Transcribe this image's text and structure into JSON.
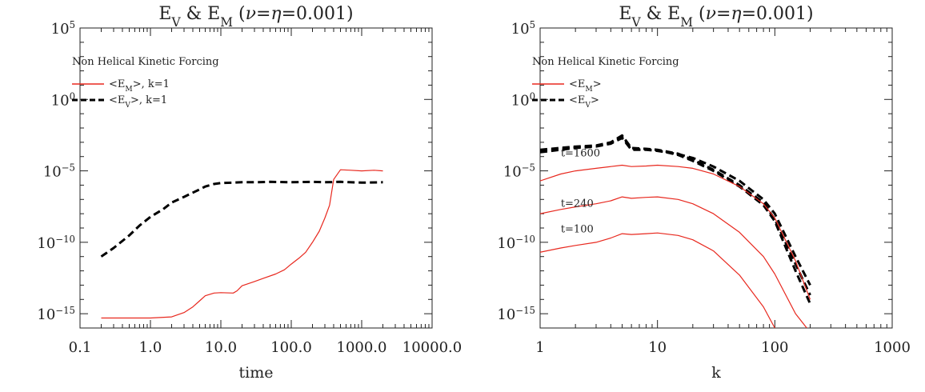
{
  "chart_data": [
    {
      "type": "line",
      "title": "E_V & E_M (ν=η=0.001)",
      "xlabel": "time",
      "ylabel": "",
      "xscale": "log",
      "yscale": "log",
      "xlim": [
        0.1,
        10000
      ],
      "ylim": [
        1e-16,
        100000.0
      ],
      "xticks": [
        0.1,
        1,
        10,
        100,
        1000,
        10000
      ],
      "xtick_labels": [
        "0.1",
        "1.0",
        "10.0",
        "100.0",
        "1000.0",
        "10000.0"
      ],
      "yticks": [
        1e-15,
        1e-10,
        1e-05,
        1,
        100000.0
      ],
      "ytick_labels": [
        {
          "base": "10",
          "exp": "−15"
        },
        {
          "base": "10",
          "exp": "−10"
        },
        {
          "base": "10",
          "exp": "−5"
        },
        {
          "base": "10",
          "exp": "0"
        },
        {
          "base": "10",
          "exp": "5"
        }
      ],
      "annotation": "Non Helical Kinetic Forcing",
      "legend_position": "top-left",
      "series": [
        {
          "name": "<E_M>, k=1",
          "legend_main": "<E",
          "legend_sub": "M",
          "legend_tail": ">, k=1",
          "color": "#e8281e",
          "style": "solid",
          "x": [
            0.2,
            0.5,
            1.0,
            2.0,
            3.0,
            4.0,
            5.0,
            6.0,
            8.0,
            10.0,
            15.0,
            17.0,
            20.0,
            30.0,
            40.0,
            60.0,
            80.0,
            100.0,
            130.0,
            160.0,
            200.0,
            250.0,
            300.0,
            350.0,
            400.0,
            500.0,
            700.0,
            1000.0,
            1500.0,
            2000.0
          ],
          "y": [
            5e-16,
            5e-16,
            5e-16,
            6e-16,
            1.2e-15,
            3e-15,
            8e-15,
            1.8e-14,
            2.8e-14,
            3e-14,
            2.8e-14,
            4e-14,
            9e-14,
            1.8e-13,
            3e-13,
            6e-13,
            1.2e-12,
            3e-12,
            8e-12,
            2e-11,
            1e-10,
            6e-10,
            5e-09,
            4e-08,
            2.5e-06,
            1.2e-05,
            1.1e-05,
            1e-05,
            1.1e-05,
            1e-05
          ]
        },
        {
          "name": "<E_V>, k=1",
          "legend_main": "<E",
          "legend_sub": "V",
          "legend_tail": ">, k=1",
          "color": "#000000",
          "style": "dashed",
          "x": [
            0.2,
            0.3,
            0.5,
            0.7,
            1.0,
            1.5,
            2.0,
            3.0,
            4.0,
            5.0,
            6.0,
            8.0,
            10.0,
            15.0,
            20.0,
            30.0,
            50.0,
            100.0,
            200.0,
            300.0,
            500.0,
            1000.0,
            2000.0
          ],
          "y": [
            1e-11,
            4e-11,
            3e-10,
            1.5e-09,
            6e-09,
            2e-08,
            6e-08,
            1.5e-07,
            3e-07,
            5e-07,
            8e-07,
            1.2e-06,
            1.4e-06,
            1.5e-06,
            1.6e-06,
            1.6e-06,
            1.7e-06,
            1.6e-06,
            1.7e-06,
            1.6e-06,
            1.7e-06,
            1.5e-06,
            1.6e-06
          ]
        }
      ]
    },
    {
      "type": "line",
      "title": "E_V & E_M (ν=η=0.001)",
      "xlabel": "k",
      "ylabel": "",
      "xscale": "log",
      "yscale": "log",
      "xlim": [
        1,
        1000
      ],
      "ylim": [
        1e-16,
        100000.0
      ],
      "xticks": [
        1,
        10,
        100,
        1000
      ],
      "xtick_labels": [
        "1",
        "10",
        "100",
        "1000"
      ],
      "yticks": [
        1e-15,
        1e-10,
        1e-05,
        1,
        100000.0
      ],
      "ytick_labels": [
        {
          "base": "10",
          "exp": "−15"
        },
        {
          "base": "10",
          "exp": "−10"
        },
        {
          "base": "10",
          "exp": "−5"
        },
        {
          "base": "10",
          "exp": "0"
        },
        {
          "base": "10",
          "exp": "5"
        }
      ],
      "annotation": "Non Helical Kinetic Forcing",
      "legend_position": "top-left",
      "legend": [
        {
          "main": "<E",
          "sub": "M",
          "tail": ">",
          "color": "#e8281e",
          "style": "solid"
        },
        {
          "main": "<E",
          "sub": "V",
          "tail": ">",
          "color": "#000000",
          "style": "dashed"
        }
      ],
      "curve_labels": [
        {
          "text": "t=1600",
          "k": 1.5,
          "y": 0.0001
        },
        {
          "text": "t=240",
          "k": 1.5,
          "y": 3e-08
        },
        {
          "text": "t=100",
          "k": 1.5,
          "y": 5e-10
        }
      ],
      "series": [
        {
          "name": "E_V",
          "label": "t=1600",
          "color": "#000000",
          "style": "dashed",
          "x": [
            1,
            2,
            3,
            4,
            5,
            6,
            8,
            10,
            15,
            20,
            30,
            50,
            80,
            100,
            150,
            200
          ],
          "y": [
            0.0002,
            0.0004,
            0.0005,
            0.0008,
            0.002,
            0.0003,
            0.0003,
            0.00025,
            0.00015,
            8e-05,
            2e-05,
            2e-06,
            1e-07,
            1e-08,
            1e-11,
            1e-13
          ]
        },
        {
          "name": "E_V",
          "label": "t=240",
          "color": "#000000",
          "style": "dashed",
          "x": [
            1,
            2,
            3,
            4,
            5,
            6,
            8,
            10,
            15,
            20,
            30,
            50,
            80,
            100,
            150,
            200
          ],
          "y": [
            0.0003,
            0.0005,
            0.0006,
            0.001,
            0.003,
            0.0004,
            0.00035,
            0.0003,
            0.00016,
            6e-05,
            1.2e-05,
            1e-06,
            6e-08,
            4e-09,
            3e-12,
            2e-14
          ]
        },
        {
          "name": "E_V",
          "label": "t=100",
          "color": "#000000",
          "style": "dashed",
          "x": [
            1,
            2,
            3,
            4,
            5,
            6,
            8,
            10,
            15,
            20,
            30,
            50,
            80,
            100,
            150,
            200
          ],
          "y": [
            0.00025,
            0.00045,
            0.00055,
            0.0009,
            0.0025,
            0.00035,
            0.00032,
            0.00028,
            0.00013,
            5e-05,
            1e-05,
            8e-07,
            4e-08,
            3e-09,
            1e-12,
            5e-15
          ]
        },
        {
          "name": "E_M",
          "label": "t=1600",
          "color": "#e8281e",
          "style": "solid",
          "x": [
            1,
            1.5,
            2,
            3,
            4,
            5,
            6,
            8,
            10,
            15,
            20,
            30,
            50,
            80,
            100,
            150,
            200
          ],
          "y": [
            2e-06,
            6e-06,
            1e-05,
            1.5e-05,
            2e-05,
            2.5e-05,
            2e-05,
            2.2e-05,
            2.5e-05,
            2e-05,
            1.5e-05,
            6e-06,
            8e-07,
            5e-08,
            5e-09,
            5e-12,
            1e-14
          ]
        },
        {
          "name": "E_M",
          "label": "t=240",
          "color": "#e8281e",
          "style": "solid",
          "x": [
            1,
            1.5,
            2,
            3,
            4,
            5,
            6,
            8,
            10,
            15,
            20,
            30,
            50,
            80,
            100,
            150,
            200
          ],
          "y": [
            1e-08,
            2e-08,
            3e-08,
            5e-08,
            8e-08,
            1.5e-07,
            1.2e-07,
            1.4e-07,
            1.5e-07,
            1e-07,
            5e-08,
            1e-08,
            5e-10,
            1e-11,
            6e-13,
            1e-15,
            5e-17
          ]
        },
        {
          "name": "E_M",
          "label": "t=100",
          "color": "#e8281e",
          "style": "solid",
          "x": [
            1,
            1.5,
            2,
            3,
            4,
            5,
            6,
            8,
            10,
            15,
            20,
            30,
            50,
            80,
            100,
            150
          ],
          "y": [
            2e-11,
            4e-11,
            6e-11,
            1e-10,
            2e-10,
            4e-10,
            3.5e-10,
            4e-10,
            4.5e-10,
            3e-10,
            1.5e-10,
            2.5e-11,
            5e-13,
            3e-15,
            1e-16,
            5e-19
          ]
        }
      ]
    }
  ]
}
